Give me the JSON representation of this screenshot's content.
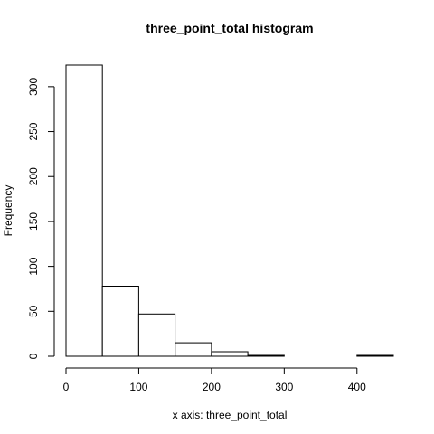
{
  "chart_data": {
    "type": "bar",
    "title": "three_point_total histogram",
    "xlabel": "x axis: three_point_total",
    "ylabel": "Frequency",
    "bins": [
      {
        "start": 0,
        "end": 50,
        "count": 324
      },
      {
        "start": 50,
        "end": 100,
        "count": 78
      },
      {
        "start": 100,
        "end": 150,
        "count": 47
      },
      {
        "start": 150,
        "end": 200,
        "count": 15
      },
      {
        "start": 200,
        "end": 250,
        "count": 5
      },
      {
        "start": 250,
        "end": 300,
        "count": 1
      },
      {
        "start": 300,
        "end": 350,
        "count": 0
      },
      {
        "start": 350,
        "end": 400,
        "count": 0
      },
      {
        "start": 400,
        "end": 450,
        "count": 1
      }
    ],
    "xlim": [
      0,
      450
    ],
    "ylim": [
      0,
      324
    ],
    "xticks": [
      0,
      100,
      200,
      300,
      400
    ],
    "yticks": [
      0,
      50,
      100,
      150,
      200,
      250,
      300
    ],
    "grid": false,
    "colors": {
      "bar_fill": "#ffffff",
      "bar_stroke": "#000000"
    }
  }
}
